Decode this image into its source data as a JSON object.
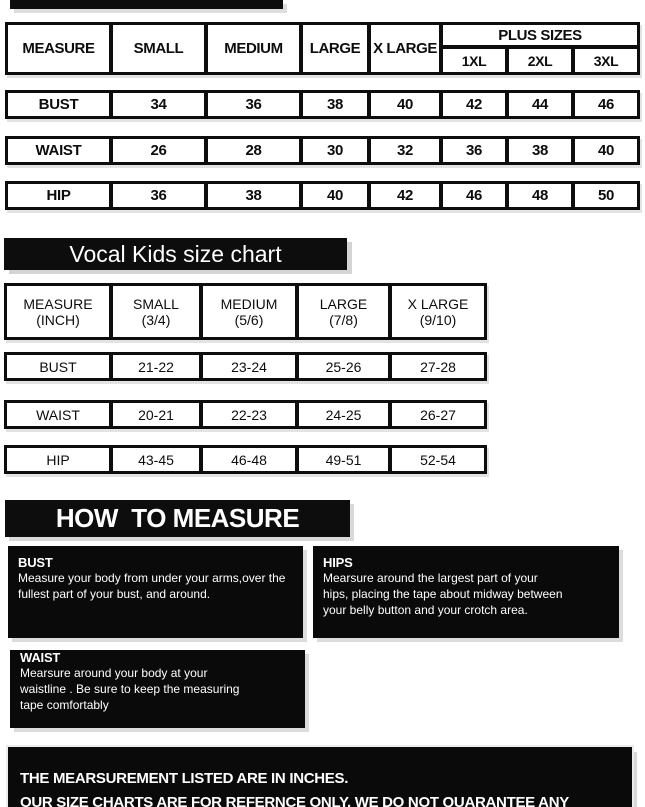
{
  "adult_table": {
    "columns": [
      "MEASURE",
      "SMALL",
      "MEDIUM",
      "LARGE",
      "X LARGE"
    ],
    "plus_sizes_label": "PLUS SIZES",
    "plus_sizes": [
      "1XL",
      "2XL",
      "3XL"
    ],
    "rows": [
      {
        "label": "BUST",
        "values": [
          "34",
          "36",
          "38",
          "40",
          "42",
          "44",
          "46"
        ]
      },
      {
        "label": "WAIST",
        "values": [
          "26",
          "28",
          "30",
          "32",
          "36",
          "38",
          "40"
        ]
      },
      {
        "label": "HIP",
        "values": [
          "36",
          "38",
          "40",
          "42",
          "46",
          "48",
          "50"
        ]
      }
    ]
  },
  "kids_table": {
    "title": "Vocal Kids size chart",
    "columns": [
      {
        "name": "MEASURE",
        "sub": "(INCH)"
      },
      {
        "name": "SMALL",
        "sub": "(3/4)"
      },
      {
        "name": "MEDIUM",
        "sub": "(5/6)"
      },
      {
        "name": "LARGE",
        "sub": "(7/8)"
      },
      {
        "name": "X LARGE",
        "sub": "(9/10)"
      }
    ],
    "rows": [
      {
        "label": "BUST",
        "values": [
          "21-22",
          "23-24",
          "25-26",
          "27-28"
        ]
      },
      {
        "label": "WAIST",
        "values": [
          "20-21",
          "22-23",
          "24-25",
          "26-27"
        ]
      },
      {
        "label": "HIP",
        "values": [
          "43-45",
          "46-48",
          "49-51",
          "52-54"
        ]
      }
    ]
  },
  "how_to_measure": {
    "title": "HOW  TO MEASURE",
    "boxes": [
      {
        "heading": "BUST",
        "lines": [
          "Measure your body from under your arms,over the",
          "fullest part of your bust, and around."
        ]
      },
      {
        "heading": "HIPS",
        "lines": [
          "Mearsure around the largest part of your",
          "hips, placing the tape about midway between",
          "your belly button and your crotch area."
        ]
      },
      {
        "heading": "WAIST",
        "lines": [
          "Mearsure around  your body at your",
          "waistline . Be sure to keep the measuring",
          "tape comfortably"
        ]
      }
    ]
  },
  "footer": {
    "lines": [
      "THE MEARSUREMENT  LISTED ARE IN INCHES.",
      "OUR SIZE CHARTS ARE FOR REFERNCE ONLY. WE DO NOT QUARANTEE ANY FITTINGS."
    ]
  },
  "colors": {
    "ink": "#0d0d0d",
    "paper": "#ffffff",
    "shadow": "#d9d9d9"
  }
}
